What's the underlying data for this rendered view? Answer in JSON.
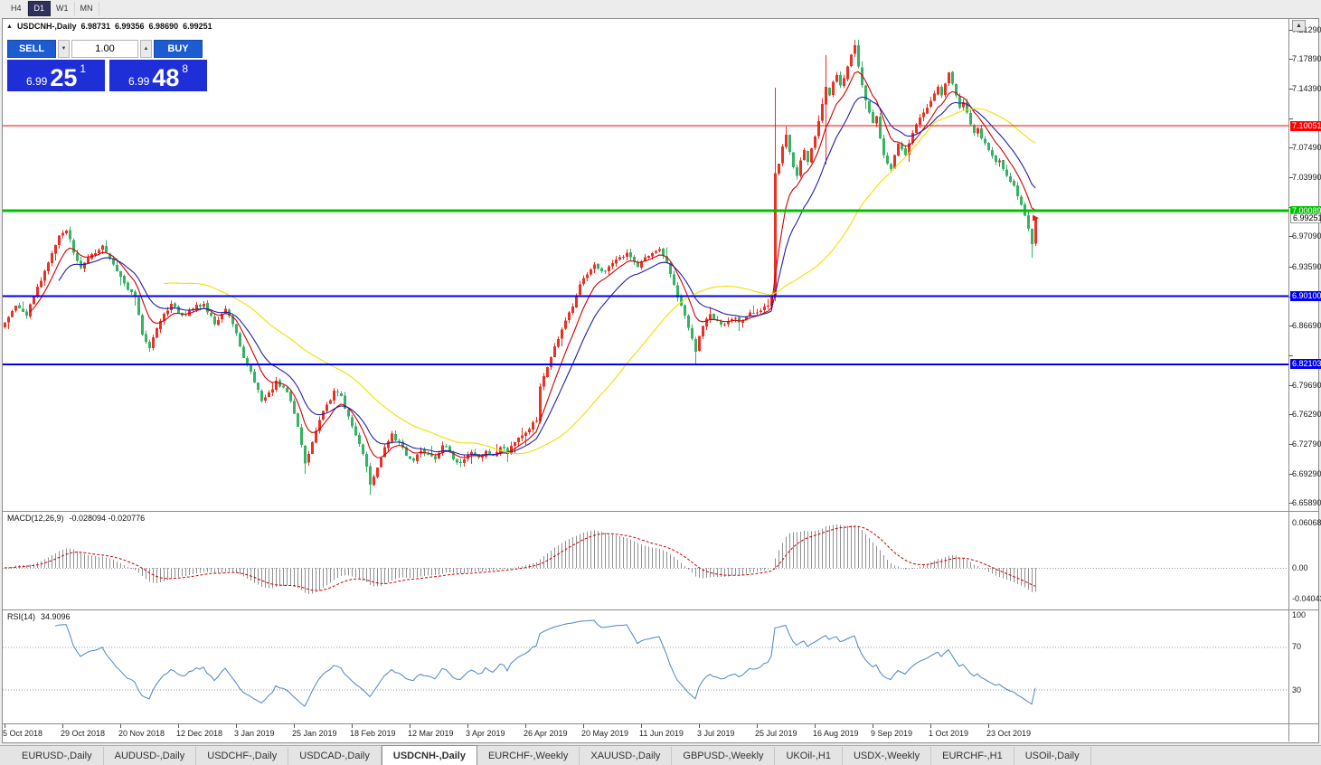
{
  "toolbar": {
    "timeframes": [
      "H4",
      "D1",
      "W1",
      "MN"
    ],
    "active": "D1"
  },
  "chart": {
    "collapse_icon": "▲",
    "symbol": "USDCNH-,Daily",
    "ohlc": {
      "open": "6.98731",
      "high": "6.99356",
      "low": "6.98690",
      "close": "6.99251"
    },
    "scroll_up_icon": "▲"
  },
  "trade_panel": {
    "sell_label": "SELL",
    "buy_label": "BUY",
    "volume": "1.00",
    "decrease_icon": "▼",
    "increase_icon": "▲",
    "sell_price": {
      "prefix": "6.99",
      "big": "25",
      "sup": "1"
    },
    "buy_price": {
      "prefix": "6.99",
      "big": "48",
      "sup": "8"
    },
    "button_color": "#1c5bd0",
    "price_color": "#1f2fd8"
  },
  "price_axis": {
    "ticks": [
      "7.21290",
      "7.17890",
      "7.14390",
      "7.10890",
      "7.07490",
      "7.03990",
      "7.00490",
      "6.97090",
      "6.93590",
      "6.90090",
      "6.86690",
      "6.83190",
      "6.79690",
      "6.76290",
      "6.72790",
      "6.69290",
      "6.65890"
    ]
  },
  "current_price": {
    "label": "6.99251",
    "value": 6.99251
  },
  "macd_panel": {
    "name": "MACD(12,26,9)",
    "values": "-0.028094 -0.020776",
    "axis_labels": [
      {
        "text": "0.060687",
        "value": 0.060687
      },
      {
        "text": "0.00",
        "value": 0
      },
      {
        "text": "-0.040437",
        "value": -0.040437
      }
    ]
  },
  "rsi_panel": {
    "name": "RSI(14)",
    "value": "34.9096",
    "axis_labels": [
      {
        "text": "100",
        "value": 100
      },
      {
        "text": "70",
        "value": 70
      },
      {
        "text": "30",
        "value": 30
      }
    ],
    "levels": [
      70,
      30
    ]
  },
  "tabs": {
    "items": [
      "EURUSD-,Daily",
      "AUDUSD-,Daily",
      "USDCHF-,Daily",
      "USDCAD-,Daily",
      "USDCNH-,Daily",
      "EURCHF-,Weekly",
      "XAUUSD-,Daily",
      "GBPUSD-,Weekly",
      "UKOil-,H1",
      "USDX-,Weekly",
      "EURCHF-,H1",
      "USOil-,Daily"
    ],
    "active_index": 4
  },
  "chart_data": {
    "type": "candlestick",
    "symbol": "USDCNH",
    "timeframe": "Daily",
    "price_range": [
      6.6589,
      7.2129
    ],
    "x_labels": [
      "5 Oct 2018",
      "29 Oct 2018",
      "20 Nov 2018",
      "12 Dec 2018",
      "3 Jan 2019",
      "25 Jan 2019",
      "18 Feb 2019",
      "12 Mar 2019",
      "3 Apr 2019",
      "26 Apr 2019",
      "20 May 2019",
      "11 Jun 2019",
      "3 Jul 2019",
      "25 Jul 2019",
      "16 Aug 2019",
      "9 Sep 2019",
      "1 Oct 2019",
      "23 Oct 2019"
    ],
    "bars_per_label": 16,
    "hlines": [
      {
        "value": 7.10051,
        "label": "7.10051",
        "color": "#ff0000",
        "width": 1
      },
      {
        "value": 7.00089,
        "label": "7.00089",
        "color": "#00c000",
        "width": 3
      },
      {
        "value": 6.901,
        "label": "6.90100",
        "color": "#0000ee",
        "width": 2
      },
      {
        "value": 6.82103,
        "label": "6.82103",
        "color": "#0000ee",
        "width": 2
      }
    ],
    "moving_averages": [
      {
        "type": "ema",
        "period": 8,
        "color": "#d00000"
      },
      {
        "type": "ema",
        "period": 16,
        "color": "#2020a8"
      },
      {
        "type": "sma",
        "period": 45,
        "color": "#f0e000"
      }
    ],
    "up_color": "#ed3024",
    "down_color": "#35b263",
    "seed": 11,
    "anchors": [
      [
        0,
        6.87
      ],
      [
        3,
        6.89
      ],
      [
        6,
        6.878
      ],
      [
        9,
        6.912
      ],
      [
        12,
        6.94
      ],
      [
        15,
        6.972
      ],
      [
        17,
        6.978
      ],
      [
        19,
        6.952
      ],
      [
        21,
        6.934
      ],
      [
        24,
        6.95
      ],
      [
        27,
        6.96
      ],
      [
        30,
        6.938
      ],
      [
        33,
        6.916
      ],
      [
        36,
        6.9
      ],
      [
        38,
        6.856
      ],
      [
        40,
        6.84
      ],
      [
        43,
        6.872
      ],
      [
        46,
        6.892
      ],
      [
        49,
        6.878
      ],
      [
        52,
        6.886
      ],
      [
        55,
        6.892
      ],
      [
        58,
        6.868
      ],
      [
        61,
        6.886
      ],
      [
        63,
        6.868
      ],
      [
        65,
        6.842
      ],
      [
        67,
        6.82
      ],
      [
        69,
        6.8
      ],
      [
        71,
        6.778
      ],
      [
        73,
        6.788
      ],
      [
        75,
        6.802
      ],
      [
        77,
        6.794
      ],
      [
        79,
        6.778
      ],
      [
        81,
        6.748
      ],
      [
        83,
        6.705
      ],
      [
        85,
        6.73
      ],
      [
        87,
        6.756
      ],
      [
        89,
        6.774
      ],
      [
        91,
        6.79
      ],
      [
        93,
        6.784
      ],
      [
        95,
        6.76
      ],
      [
        97,
        6.738
      ],
      [
        99,
        6.716
      ],
      [
        101,
        6.68
      ],
      [
        103,
        6.7
      ],
      [
        105,
        6.724
      ],
      [
        107,
        6.74
      ],
      [
        109,
        6.73
      ],
      [
        111,
        6.714
      ],
      [
        113,
        6.708
      ],
      [
        115,
        6.72
      ],
      [
        117,
        6.716
      ],
      [
        119,
        6.71
      ],
      [
        121,
        6.726
      ],
      [
        123,
        6.718
      ],
      [
        125,
        6.706
      ],
      [
        127,
        6.71
      ],
      [
        129,
        6.718
      ],
      [
        131,
        6.712
      ],
      [
        133,
        6.72
      ],
      [
        135,
        6.714
      ],
      [
        137,
        6.724
      ],
      [
        139,
        6.716
      ],
      [
        141,
        6.73
      ],
      [
        143,
        6.738
      ],
      [
        145,
        6.745
      ],
      [
        147,
        6.755
      ],
      [
        148,
        6.795
      ],
      [
        150,
        6.818
      ],
      [
        152,
        6.842
      ],
      [
        154,
        6.862
      ],
      [
        156,
        6.882
      ],
      [
        158,
        6.902
      ],
      [
        160,
        6.922
      ],
      [
        163,
        6.938
      ],
      [
        166,
        6.93
      ],
      [
        169,
        6.944
      ],
      [
        172,
        6.952
      ],
      [
        175,
        6.935
      ],
      [
        178,
        6.948
      ],
      [
        181,
        6.956
      ],
      [
        183,
        6.94
      ],
      [
        185,
        6.914
      ],
      [
        187,
        6.89
      ],
      [
        189,
        6.864
      ],
      [
        191,
        6.836
      ],
      [
        193,
        6.866
      ],
      [
        195,
        6.88
      ],
      [
        197,
        6.872
      ],
      [
        199,
        6.868
      ],
      [
        201,
        6.874
      ],
      [
        203,
        6.87
      ],
      [
        205,
        6.877
      ],
      [
        207,
        6.881
      ],
      [
        209,
        6.884
      ],
      [
        211,
        6.89
      ],
      [
        212,
        6.9
      ],
      [
        213,
        7.045
      ],
      [
        214,
        7.056
      ],
      [
        215,
        7.076
      ],
      [
        216,
        7.09
      ],
      [
        217,
        7.07
      ],
      [
        218,
        7.052
      ],
      [
        219,
        7.042
      ],
      [
        220,
        7.06
      ],
      [
        221,
        7.072
      ],
      [
        222,
        7.058
      ],
      [
        223,
        7.074
      ],
      [
        224,
        7.088
      ],
      [
        225,
        7.106
      ],
      [
        226,
        7.126
      ],
      [
        227,
        7.146
      ],
      [
        228,
        7.136
      ],
      [
        229,
        7.152
      ],
      [
        230,
        7.16
      ],
      [
        231,
        7.148
      ],
      [
        232,
        7.156
      ],
      [
        233,
        7.17
      ],
      [
        234,
        7.184
      ],
      [
        235,
        7.195
      ],
      [
        236,
        7.17
      ],
      [
        237,
        7.148
      ],
      [
        238,
        7.13
      ],
      [
        239,
        7.116
      ],
      [
        240,
        7.104
      ],
      [
        241,
        7.112
      ],
      [
        242,
        7.086
      ],
      [
        243,
        7.066
      ],
      [
        244,
        7.056
      ],
      [
        245,
        7.05
      ],
      [
        246,
        7.066
      ],
      [
        247,
        7.08
      ],
      [
        248,
        7.073
      ],
      [
        249,
        7.066
      ],
      [
        250,
        7.08
      ],
      [
        251,
        7.092
      ],
      [
        252,
        7.102
      ],
      [
        253,
        7.11
      ],
      [
        254,
        7.116
      ],
      [
        255,
        7.122
      ],
      [
        256,
        7.13
      ],
      [
        257,
        7.138
      ],
      [
        258,
        7.146
      ],
      [
        259,
        7.136
      ],
      [
        260,
        7.15
      ],
      [
        261,
        7.163
      ],
      [
        262,
        7.15
      ],
      [
        263,
        7.136
      ],
      [
        264,
        7.122
      ],
      [
        265,
        7.128
      ],
      [
        266,
        7.116
      ],
      [
        267,
        7.102
      ],
      [
        268,
        7.092
      ],
      [
        269,
        7.098
      ],
      [
        270,
        7.086
      ],
      [
        271,
        7.08
      ],
      [
        272,
        7.072
      ],
      [
        273,
        7.065
      ],
      [
        274,
        7.058
      ],
      [
        275,
        7.06
      ],
      [
        276,
        7.05
      ],
      [
        277,
        7.042
      ],
      [
        278,
        7.035
      ],
      [
        279,
        7.03
      ],
      [
        280,
        7.018
      ],
      [
        281,
        7.008
      ],
      [
        282,
        6.995
      ],
      [
        283,
        6.98
      ],
      [
        284,
        6.962
      ],
      [
        285,
        6.9925
      ]
    ],
    "overrides": [
      {
        "day": 83,
        "low": 6.693
      },
      {
        "day": 101,
        "low": 6.668
      },
      {
        "day": 191,
        "low": 6.822
      },
      {
        "day": 213,
        "open": 6.9,
        "high": 7.145,
        "low": 6.895,
        "close": 7.045
      },
      {
        "day": 227,
        "high": 7.183,
        "low": 7.055
      },
      {
        "day": 235,
        "high": 7.201
      },
      {
        "day": 284,
        "low": 6.946
      }
    ],
    "macd": {
      "fast": 12,
      "slow": 26,
      "signal": 9,
      "hist_color": "#909090",
      "signal_color": "#cc0000",
      "current": -0.028094,
      "current_signal": -0.020776
    },
    "rsi": {
      "period": 14,
      "color": "#4a86c8",
      "current": 34.9096
    }
  }
}
